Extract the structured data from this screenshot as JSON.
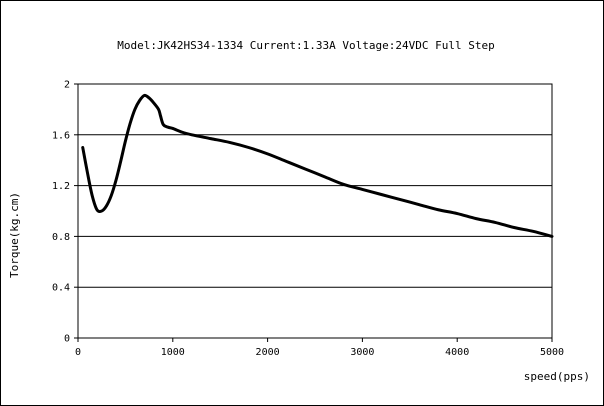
{
  "chart_data": {
    "type": "line",
    "title": "Model:JK42HS34-1334 Current:1.33A Voltage:24VDC Full Step",
    "xlabel": "speed(pps)",
    "ylabel": "Torque(kg.cm)",
    "xlim": [
      0,
      5000
    ],
    "ylim": [
      0,
      2
    ],
    "x_ticks": [
      "0",
      "1000",
      "2000",
      "3000",
      "4000",
      "5000"
    ],
    "y_ticks": [
      "0",
      "0.4",
      "0.8",
      "1.2",
      "1.6",
      "2"
    ],
    "x_tick_values": [
      0,
      1000,
      2000,
      3000,
      4000,
      5000
    ],
    "y_tick_values": [
      0,
      0.4,
      0.8,
      1.2,
      1.6,
      2
    ],
    "grid": "horizontal",
    "legend": "none",
    "line_color": "#000000",
    "series": [
      {
        "x": [
          50,
          100,
          150,
          200,
          250,
          300,
          350,
          400,
          450,
          500,
          550,
          600,
          650,
          700,
          750,
          800,
          850,
          870,
          900,
          950,
          1000,
          1100,
          1200,
          1400,
          1600,
          1800,
          2000,
          2200,
          2400,
          2600,
          2800,
          3000,
          3200,
          3400,
          3600,
          3800,
          4000,
          4200,
          4400,
          4600,
          4800,
          5000
        ],
        "y": [
          1.5,
          1.3,
          1.12,
          1.01,
          1.0,
          1.04,
          1.12,
          1.24,
          1.39,
          1.55,
          1.69,
          1.8,
          1.87,
          1.91,
          1.89,
          1.85,
          1.8,
          1.75,
          1.68,
          1.66,
          1.65,
          1.62,
          1.6,
          1.57,
          1.54,
          1.5,
          1.45,
          1.39,
          1.33,
          1.27,
          1.21,
          1.17,
          1.13,
          1.09,
          1.05,
          1.01,
          0.98,
          0.94,
          0.91,
          0.87,
          0.84,
          0.8
        ]
      }
    ]
  }
}
